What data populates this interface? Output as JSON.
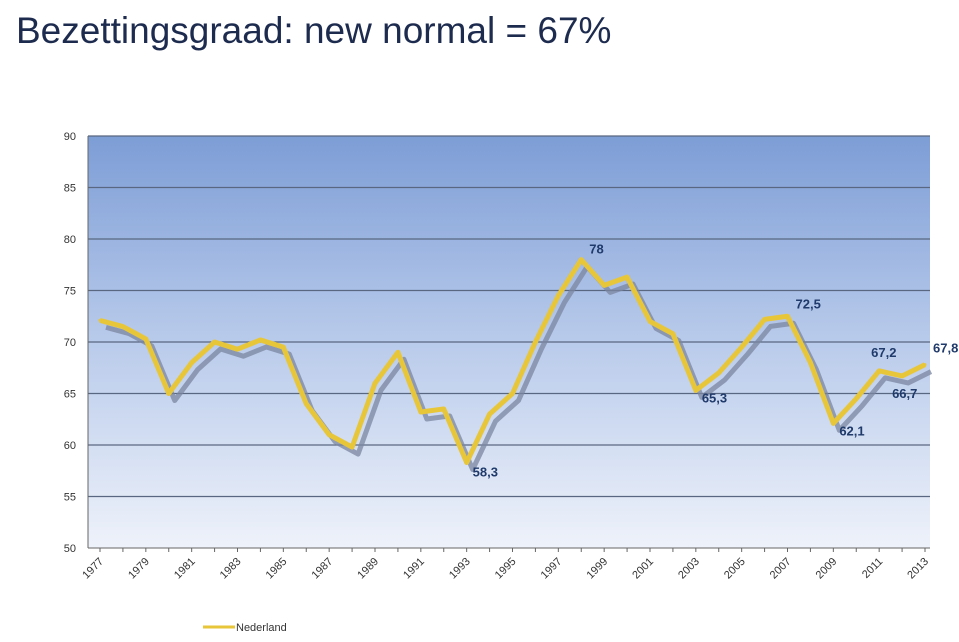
{
  "title": "Bezettingsgraad: new normal = 67%",
  "chart_data": {
    "type": "line",
    "title": "Bezettingsgraad: new normal = 67%",
    "xlabel": "",
    "ylabel": "",
    "ylim": [
      50,
      90
    ],
    "yticks": [
      50,
      55,
      60,
      65,
      70,
      75,
      80,
      85,
      90
    ],
    "x": [
      1977,
      1978,
      1979,
      1980,
      1981,
      1982,
      1983,
      1984,
      1985,
      1986,
      1987,
      1988,
      1989,
      1990,
      1991,
      1992,
      1993,
      1994,
      1995,
      1996,
      1997,
      1998,
      1999,
      2000,
      2001,
      2002,
      2003,
      2004,
      2005,
      2006,
      2007,
      2008,
      2009,
      2010,
      2011,
      2012,
      2013
    ],
    "xtick_labels": [
      "1977",
      "1979",
      "1981",
      "1983",
      "1985",
      "1987",
      "1989",
      "1991",
      "1993",
      "1995",
      "1997",
      "1999",
      "2001",
      "2003",
      "2005",
      "2007",
      "2009",
      "2011",
      "2013"
    ],
    "grid": true,
    "legend_position": "bottom-left",
    "series": [
      {
        "name": "Nederland",
        "color": "#e8c63a",
        "values": [
          72.1,
          71.5,
          70.3,
          65.0,
          68.0,
          70.0,
          69.3,
          70.2,
          69.5,
          64.0,
          61.0,
          59.8,
          66.0,
          69.0,
          63.2,
          63.5,
          58.3,
          63.0,
          65.0,
          70.0,
          74.5,
          78.0,
          75.5,
          76.3,
          72.0,
          70.8,
          65.3,
          67.0,
          69.5,
          72.2,
          72.5,
          68.0,
          62.1,
          64.5,
          67.2,
          66.7,
          67.8
        ]
      }
    ],
    "annotations": [
      {
        "x": 1993,
        "label": "58,3"
      },
      {
        "x": 1998,
        "label": "78"
      },
      {
        "x": 2003,
        "label": "65,3"
      },
      {
        "x": 2007,
        "label": "72,5"
      },
      {
        "x": 2009,
        "label": "62,1"
      },
      {
        "x": 2011,
        "label": "67,2"
      },
      {
        "x": 2012,
        "label": "66,7"
      },
      {
        "x": 2013,
        "label": "67,8"
      }
    ]
  }
}
